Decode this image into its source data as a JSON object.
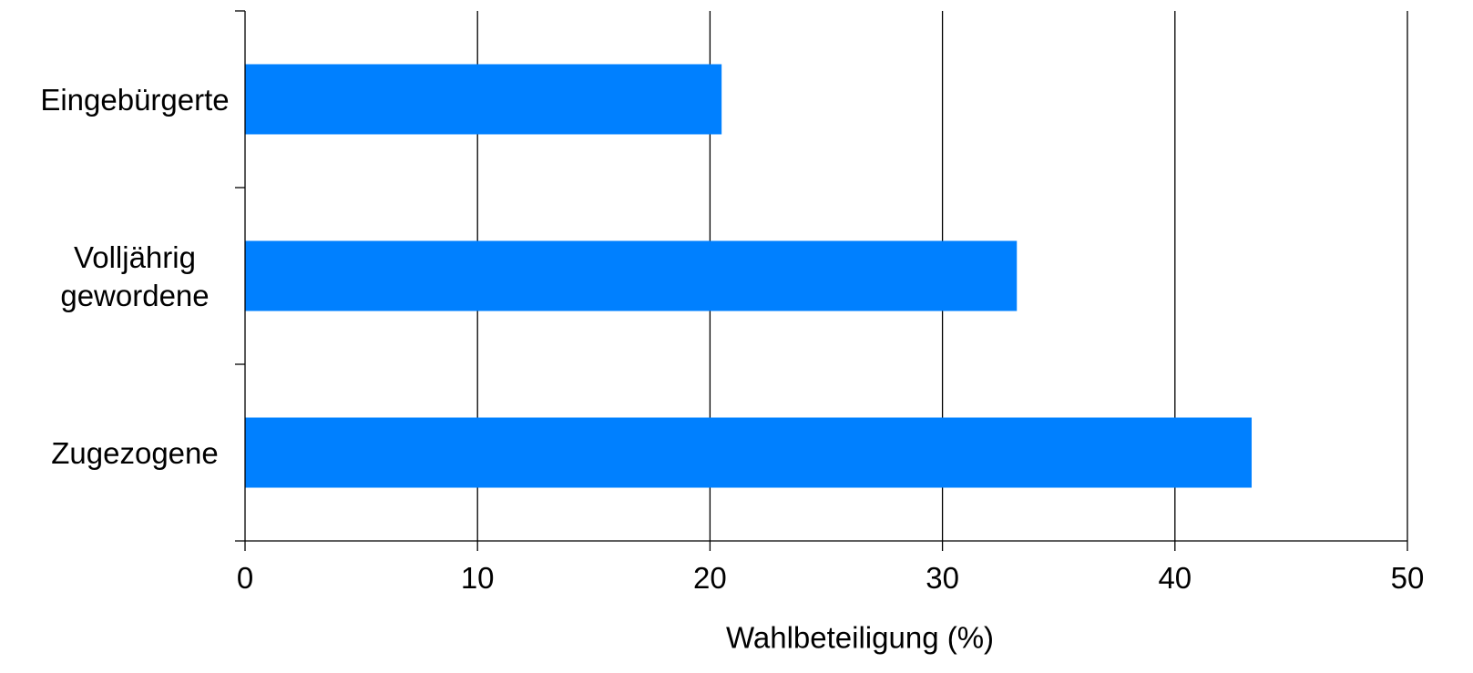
{
  "chart_data": {
    "type": "bar",
    "orientation": "horizontal",
    "categories": [
      [
        "Eingebürgerte"
      ],
      [
        "Volljährig",
        "gewordene"
      ],
      [
        "Zugezogene"
      ]
    ],
    "values": [
      20.5,
      33.2,
      43.3
    ],
    "xlabel": "Wahlbeteiligung (%)",
    "ylabel": "",
    "xlim": [
      0,
      50
    ],
    "xticks": [
      0,
      10,
      20,
      30,
      40,
      50
    ],
    "grid": "vertical",
    "bar_color": "#0080FF",
    "grid_color": "#000000"
  }
}
